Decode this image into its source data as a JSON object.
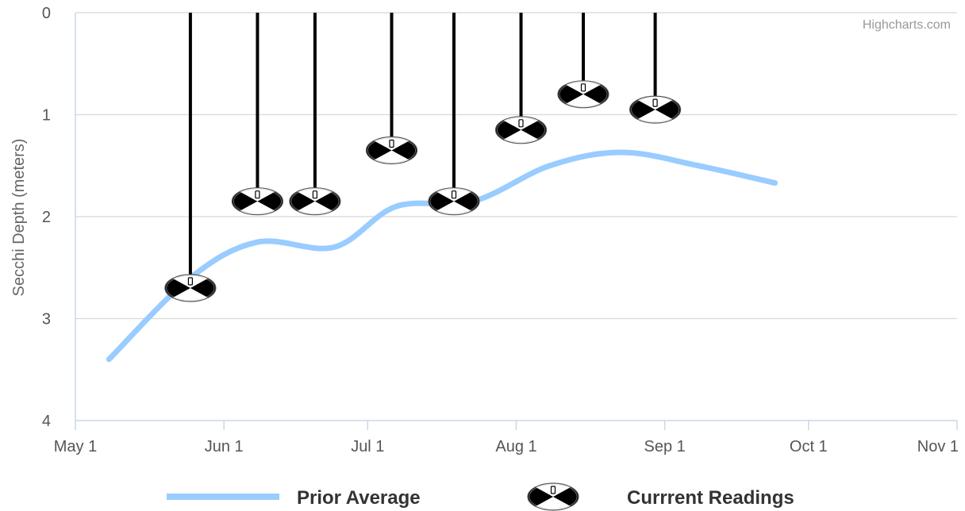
{
  "chart_data": {
    "type": "line",
    "credit": "Highcharts.com",
    "ylabel": "Secchi Depth (meters)",
    "xlabel": "",
    "y_reversed": true,
    "ylim": [
      0,
      4
    ],
    "y_ticks": [
      "0",
      "1",
      "2",
      "3",
      "4"
    ],
    "xlim": [
      "2016-05-01",
      "2016-11-01"
    ],
    "x_ticks": [
      {
        "date": "2016-05-01",
        "label": "May 1"
      },
      {
        "date": "2016-06-01",
        "label": "Jun 1"
      },
      {
        "date": "2016-07-01",
        "label": "Jul 1"
      },
      {
        "date": "2016-08-01",
        "label": "Aug 1"
      },
      {
        "date": "2016-09-01",
        "label": "Sep 1"
      },
      {
        "date": "2016-10-01",
        "label": "Oct 1"
      },
      {
        "date": "2016-11-01",
        "label": "Nov 1"
      }
    ],
    "grid": true,
    "legend_position": "bottom",
    "series": [
      {
        "name": "Prior Average",
        "kind": "spline",
        "color": "#99ccff",
        "points": [
          {
            "x": "2016-05-08",
            "y": 3.4
          },
          {
            "x": "2016-05-25",
            "y": 2.6
          },
          {
            "x": "2016-06-08",
            "y": 2.25
          },
          {
            "x": "2016-06-24",
            "y": 2.3
          },
          {
            "x": "2016-07-07",
            "y": 1.9
          },
          {
            "x": "2016-07-23",
            "y": 1.85
          },
          {
            "x": "2016-08-08",
            "y": 1.5
          },
          {
            "x": "2016-08-23",
            "y": 1.37
          },
          {
            "x": "2016-09-08",
            "y": 1.5
          },
          {
            "x": "2016-09-24",
            "y": 1.67
          }
        ]
      },
      {
        "name": "Currrent Readings",
        "kind": "secchi-disk",
        "color": "#000000",
        "points": [
          {
            "x": "2016-05-25",
            "y": 2.7
          },
          {
            "x": "2016-06-08",
            "y": 1.85
          },
          {
            "x": "2016-06-20",
            "y": 1.85
          },
          {
            "x": "2016-07-06",
            "y": 1.35
          },
          {
            "x": "2016-07-19",
            "y": 1.85
          },
          {
            "x": "2016-08-02",
            "y": 1.15
          },
          {
            "x": "2016-08-15",
            "y": 0.8
          },
          {
            "x": "2016-08-30",
            "y": 0.95
          }
        ]
      }
    ]
  }
}
